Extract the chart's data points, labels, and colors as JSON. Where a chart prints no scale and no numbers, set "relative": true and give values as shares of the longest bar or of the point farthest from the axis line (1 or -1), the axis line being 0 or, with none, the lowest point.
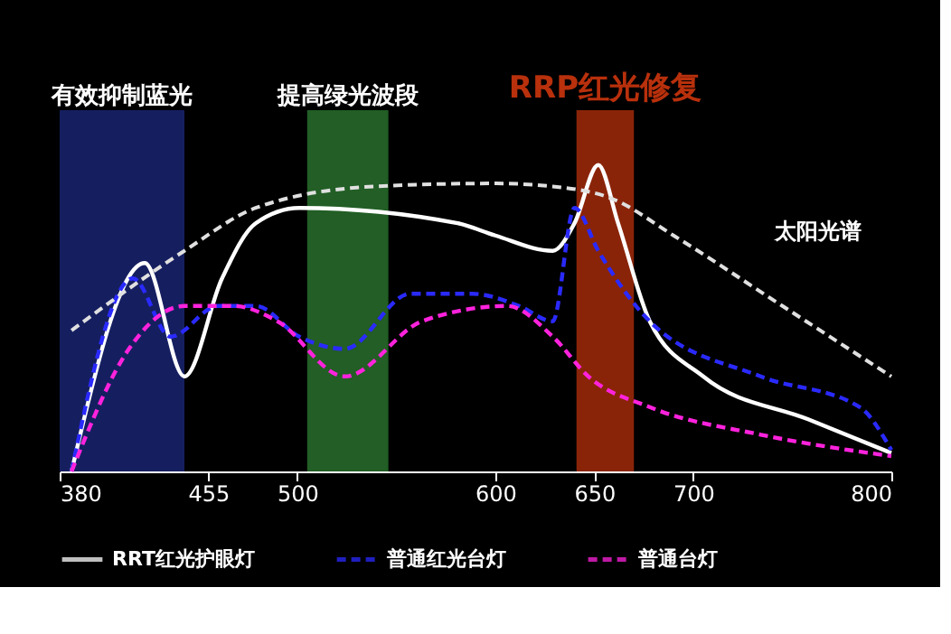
{
  "chart_data": {
    "type": "line",
    "relative": true,
    "xlim": [
      380,
      800
    ],
    "xticks": [
      380,
      455,
      500,
      600,
      650,
      700,
      800
    ],
    "legend": "bottom",
    "grid": false,
    "series": [
      {
        "name": "RRT红光护眼灯",
        "color": "#ffffff",
        "line_style": "solid",
        "x": [
          386,
          423,
          443,
          462,
          479,
          501,
          581,
          600,
          629,
          640,
          652,
          662,
          678,
          705,
          758,
          800
        ],
        "values": [
          0,
          0.68,
          0.31,
          0.63,
          0.81,
          0.86,
          0.81,
          0.77,
          0.72,
          0.81,
          1.0,
          0.81,
          0.49,
          0.31,
          0.17,
          0.06
        ]
      },
      {
        "name": "普通红光台灯",
        "color": "#2a2aff",
        "line_style": "dashed",
        "x": [
          386,
          417,
          436,
          460,
          479,
          501,
          524,
          557,
          588,
          612,
          629,
          640,
          652,
          678,
          734,
          784,
          800
        ],
        "values": [
          0,
          0.63,
          0.44,
          0.54,
          0.54,
          0.44,
          0.4,
          0.58,
          0.58,
          0.54,
          0.49,
          0.86,
          0.72,
          0.49,
          0.31,
          0.21,
          0.07
        ]
      },
      {
        "name": "普通台灯",
        "color": "#ff22dd",
        "line_style": "dashed",
        "x": [
          386,
          415,
          443,
          468,
          490,
          524,
          563,
          606,
          629,
          647,
          678,
          734,
          800
        ],
        "values": [
          0,
          0.4,
          0.54,
          0.54,
          0.49,
          0.31,
          0.49,
          0.54,
          0.44,
          0.31,
          0.21,
          0.12,
          0.05
        ]
      },
      {
        "color": "#e0e0e0",
        "line_style": "dashed",
        "x": [
          386,
          443,
          479,
          539,
          600,
          629,
          659,
          690,
          745,
          800
        ],
        "values": [
          0.46,
          0.72,
          0.86,
          0.93,
          0.94,
          0.93,
          0.89,
          0.77,
          0.54,
          0.31
        ]
      }
    ],
    "bands": [
      {
        "axis": "x",
        "from": 380,
        "to": 443,
        "label": "有效抑制蓝光",
        "color": "#1c2a80"
      },
      {
        "axis": "x",
        "from": 505,
        "to": 546,
        "label": "提高绿光波段",
        "color": "#2e7d32"
      },
      {
        "axis": "x",
        "from": 641,
        "to": 670,
        "label": "RRP红光修复",
        "color": "#b8300c"
      }
    ],
    "annotations": [
      "太阳光谱"
    ]
  }
}
